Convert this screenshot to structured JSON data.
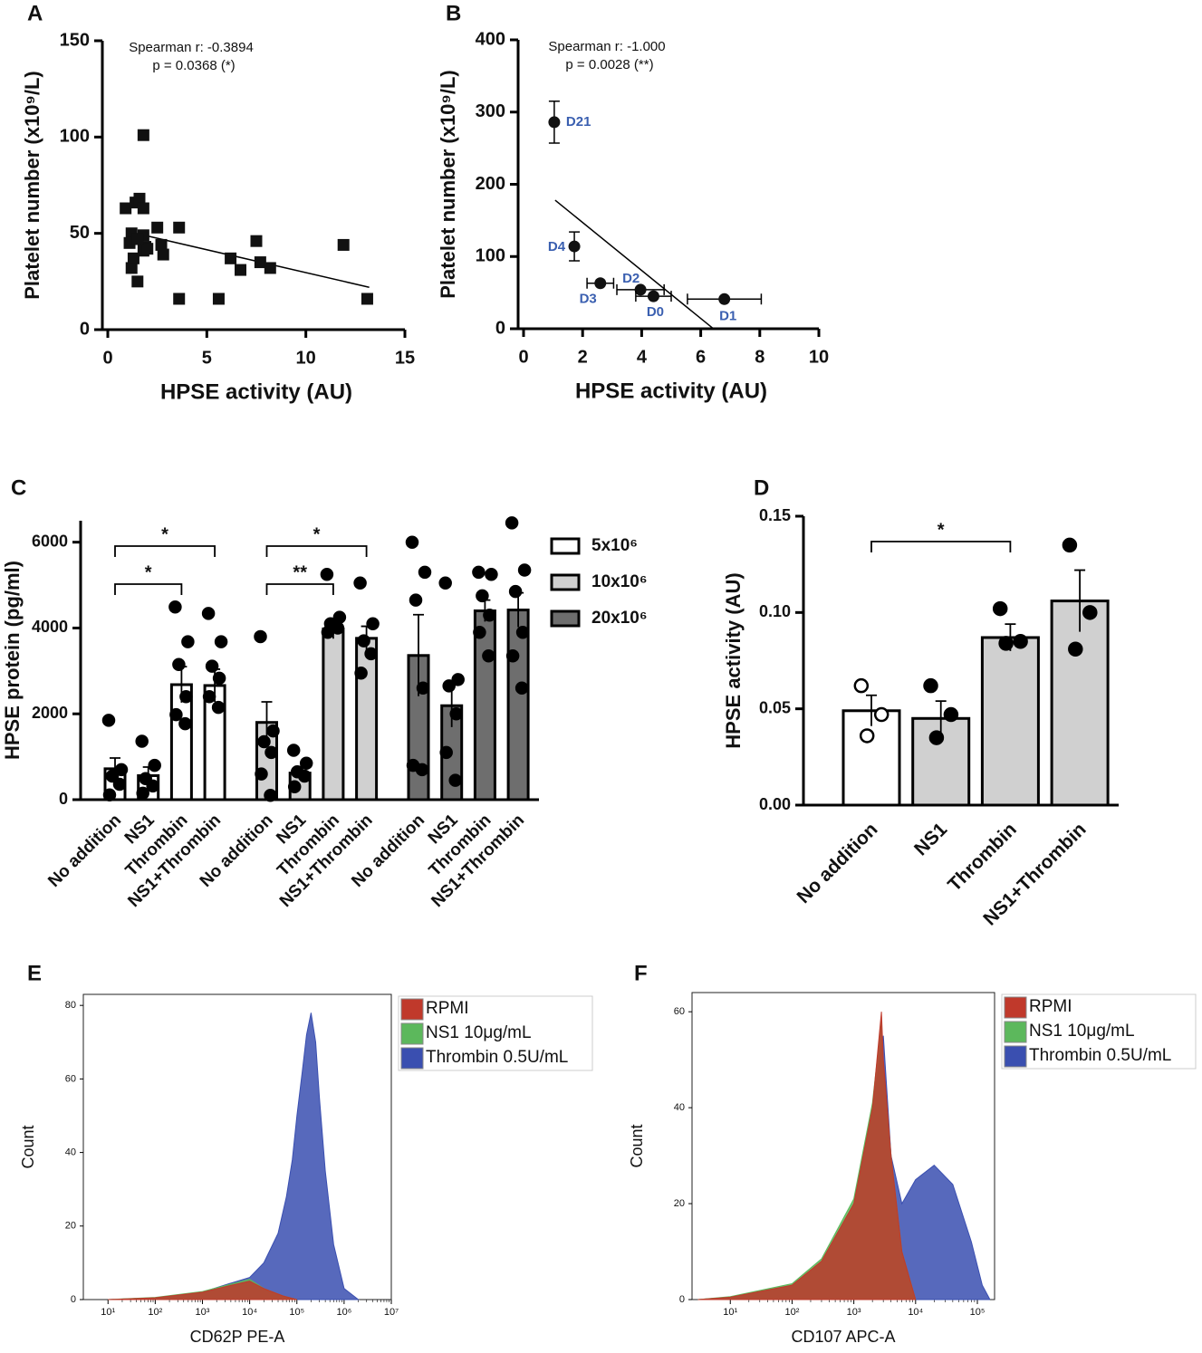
{
  "chart_data": [
    {
      "type": "scatter",
      "panel": "A",
      "marker": "square",
      "annotations": [
        "Spearman r: -0.3894",
        "p = 0.0368 (*)"
      ],
      "x_label": "HPSE activity (AU)",
      "y_label": "Platelet number (x10⁹/L)",
      "x": [
        0.9,
        1.2,
        1.1,
        1.2,
        1.3,
        1.4,
        1.5,
        1.6,
        1.8,
        1.8,
        1.8,
        1.8,
        1.9,
        2.0,
        2.5,
        2.7,
        2.8,
        3.6,
        3.6,
        5.6,
        6.2,
        6.7,
        7.5,
        7.7,
        8.2,
        11.9,
        13.1,
        1.5
      ],
      "values": [
        63,
        50,
        45,
        32,
        37,
        66,
        25,
        68,
        101,
        49,
        41,
        63,
        43,
        42,
        53,
        44,
        39,
        16,
        53,
        16,
        37,
        31,
        46,
        35,
        32,
        44,
        16,
        47
      ],
      "fit": {
        "x": [
          1.0,
          13.2
        ],
        "y": [
          51,
          22
        ]
      },
      "color": "#111111",
      "xlim": [
        0,
        15
      ],
      "xticks": [
        0,
        5,
        10,
        15
      ],
      "ylim": [
        0,
        150
      ],
      "yticks": [
        0,
        50,
        100,
        150
      ]
    },
    {
      "type": "scatter",
      "panel": "B",
      "marker": "circle",
      "annotations": [
        "Spearman r: -1.000",
        "p = 0.0028 (**)"
      ],
      "x_label": "HPSE activity (AU)",
      "y_label": "Platelet number (x10⁹/L)",
      "x": [
        1.04,
        1.72,
        2.6,
        3.96,
        4.4,
        6.8
      ],
      "values": [
        286,
        114,
        63,
        54,
        45,
        41
      ],
      "xerr": [
        null,
        null,
        0.45,
        0.8,
        0.6,
        1.25
      ],
      "yerr": [
        29,
        20,
        null,
        null,
        null,
        null
      ],
      "point_labels": [
        "D21",
        "D4",
        "D3",
        "D2",
        "D0",
        "D1"
      ],
      "label_color": "#3a5fb0",
      "fit": {
        "x": [
          1.07,
          6.4
        ],
        "y": [
          178,
          1
        ]
      },
      "color": "#111111",
      "xlim": [
        0,
        10
      ],
      "xticks": [
        0,
        2,
        4,
        6,
        8,
        10
      ],
      "ylim": [
        0,
        400
      ],
      "yticks": [
        0,
        100,
        200,
        300,
        400
      ]
    },
    {
      "type": "bar",
      "panel": "C",
      "y_label": "HPSE protein (pg/ml)",
      "categories": [
        "No addition",
        "NS1",
        "Thrombin",
        "NS1+Thrombin"
      ],
      "series": [
        {
          "name": "5x10⁶",
          "color": "#ffffff",
          "values": [
            720,
            560,
            2680,
            2660
          ],
          "errors": [
            250,
            200,
            420,
            380
          ],
          "points": [
            [
              1850,
              700,
              550,
              360,
              110
            ],
            [
              1360,
              800,
              490,
              320,
              150
            ],
            [
              4490,
              3680,
              3150,
              2400,
              1980,
              1770
            ],
            [
              4340,
              3680,
              3110,
              2830,
              2400,
              2150
            ]
          ]
        },
        {
          "name": "10x10⁶",
          "color": "#d0d0d0",
          "values": [
            1800,
            620,
            3980,
            3760
          ],
          "errors": [
            480,
            150,
            230,
            280
          ],
          "points": [
            [
              3800,
              1600,
              1350,
              1100,
              600,
              100
            ],
            [
              1150,
              850,
              650,
              550,
              300
            ],
            [
              5250,
              4250,
              4100,
              4000,
              3900
            ],
            [
              5050,
              4100,
              3700,
              3400,
              2950
            ]
          ]
        },
        {
          "name": "20x10⁶",
          "color": "#6e6e6e",
          "values": [
            3360,
            2190,
            4400,
            4420
          ],
          "errors": [
            950,
            500,
            250,
            400
          ],
          "points": [
            [
              6000,
              5300,
              4650,
              2600,
              800,
              700
            ],
            [
              5050,
              2800,
              2650,
              2000,
              1100,
              450
            ],
            [
              5300,
              5250,
              4750,
              4300,
              3900,
              3350
            ],
            [
              6450,
              5350,
              4850,
              3900,
              3350,
              2600
            ]
          ]
        }
      ],
      "brackets": [
        {
          "series": 0,
          "from": 0,
          "to": 3,
          "label": "*"
        },
        {
          "series": 0,
          "from": 0,
          "to": 2,
          "label": "*"
        },
        {
          "series": 1,
          "from": 0,
          "to": 3,
          "label": "*"
        },
        {
          "series": 1,
          "from": 0,
          "to": 2,
          "label": "**"
        }
      ],
      "ylim": [
        0,
        6500
      ],
      "yticks": [
        0,
        2000,
        4000,
        6000
      ]
    },
    {
      "type": "bar",
      "panel": "D",
      "y_label": "HPSE activity (AU)",
      "categories": [
        "No addition",
        "NS1",
        "Thrombin",
        "NS1+Thrombin"
      ],
      "values": [
        0.049,
        0.045,
        0.087,
        0.106
      ],
      "errors": [
        0.008,
        0.009,
        0.007,
        0.016
      ],
      "points": [
        [
          0.062,
          0.047,
          0.036
        ],
        [
          0.062,
          0.047,
          0.035
        ],
        [
          0.102,
          0.085,
          0.084
        ],
        [
          0.135,
          0.1,
          0.081
        ]
      ],
      "colors": [
        "#ffffff",
        "#d0d0d0",
        "#d0d0d0",
        "#d0d0d0"
      ],
      "point_fills": [
        "#ffffff",
        "#000000",
        "#000000",
        "#000000"
      ],
      "brackets": [
        {
          "from": 0,
          "to": 2,
          "label": "*"
        }
      ],
      "ylim": [
        0,
        0.15
      ],
      "yticks": [
        {
          "value": 0,
          "label": "0.00"
        },
        0.05,
        {
          "value": 0.1,
          "label": "0.10"
        },
        0.15
      ]
    },
    {
      "type": "area",
      "panel": "E",
      "x_label": "CD62P PE-A",
      "y_label": "Count",
      "xlog": true,
      "series": [
        {
          "name": "RPMI",
          "color": "#c0392b",
          "x": [
            10,
            100,
            1000,
            3000,
            10000,
            20000,
            50000,
            100000
          ],
          "values": [
            0,
            0.5,
            2,
            3.5,
            5,
            3,
            1,
            0
          ]
        },
        {
          "name": "NS1 10μg/mL",
          "color": "#5cb85c",
          "x": [
            10,
            100,
            1000,
            3000,
            10000,
            20000,
            50000,
            100000
          ],
          "values": [
            0,
            0.6,
            2.2,
            3.8,
            5.5,
            3,
            1,
            0
          ]
        },
        {
          "name": "Thrombin 0.5U/mL",
          "color": "#3a4fb0",
          "x": [
            10,
            100,
            1000,
            3000,
            10000,
            20000,
            40000,
            60000,
            80000,
            100000,
            130000,
            160000,
            200000,
            250000,
            300000,
            400000,
            600000,
            1000000,
            2000000
          ],
          "values": [
            0,
            0.5,
            2,
            4,
            6,
            10,
            18,
            28,
            38,
            50,
            62,
            72,
            78,
            70,
            55,
            35,
            15,
            3,
            0
          ]
        }
      ],
      "xlim": [
        3,
        10000000
      ],
      "xticks": [
        {
          "value": 10,
          "label": "10¹"
        },
        {
          "value": 100,
          "label": "10²"
        },
        {
          "value": 1000,
          "label": "10³"
        },
        {
          "value": 10000,
          "label": "10⁴"
        },
        {
          "value": 100000,
          "label": "10⁵"
        },
        {
          "value": 1000000,
          "label": "10⁶"
        },
        {
          "value": 10000000,
          "label": "10⁷"
        }
      ],
      "ylim": [
        0,
        83
      ],
      "yticks": [
        0,
        20,
        40,
        60,
        80
      ]
    },
    {
      "type": "area",
      "panel": "F",
      "x_label": "CD107 APC-A",
      "y_label": "Count",
      "xlog": true,
      "series": [
        {
          "name": "RPMI",
          "color": "#c0392b",
          "x": [
            3,
            10,
            100,
            300,
            1000,
            2000,
            2800,
            3000,
            4000,
            6000,
            10000
          ],
          "values": [
            0,
            0.5,
            3,
            8,
            20,
            40,
            60,
            50,
            30,
            10,
            0
          ]
        },
        {
          "name": "NS1 10μg/mL",
          "color": "#5cb85c",
          "x": [
            3,
            10,
            100,
            300,
            1000,
            2000,
            2800,
            3000,
            4000,
            6000,
            10000
          ],
          "values": [
            0,
            0.6,
            3.3,
            8.5,
            21,
            41,
            58,
            49,
            30,
            10,
            0
          ]
        },
        {
          "name": "Thrombin 0.5U/mL",
          "color": "#3a4fb0",
          "x": [
            3,
            10,
            100,
            300,
            1000,
            2000,
            3000,
            4000,
            6000,
            10000,
            20000,
            40000,
            80000,
            120000,
            160000
          ],
          "values": [
            0,
            0.5,
            3,
            8,
            20,
            40,
            55,
            30,
            20,
            25,
            28,
            24,
            12,
            3,
            0
          ]
        }
      ],
      "xlim": [
        2.4,
        190000
      ],
      "xticks": [
        {
          "value": 10,
          "label": "10¹"
        },
        {
          "value": 100,
          "label": "10²"
        },
        {
          "value": 1000,
          "label": "10³"
        },
        {
          "value": 10000,
          "label": "10⁴"
        },
        {
          "value": 100000,
          "label": "10⁵"
        }
      ],
      "ylim": [
        0,
        64
      ],
      "yticks": [
        0,
        20,
        40,
        60
      ]
    }
  ]
}
